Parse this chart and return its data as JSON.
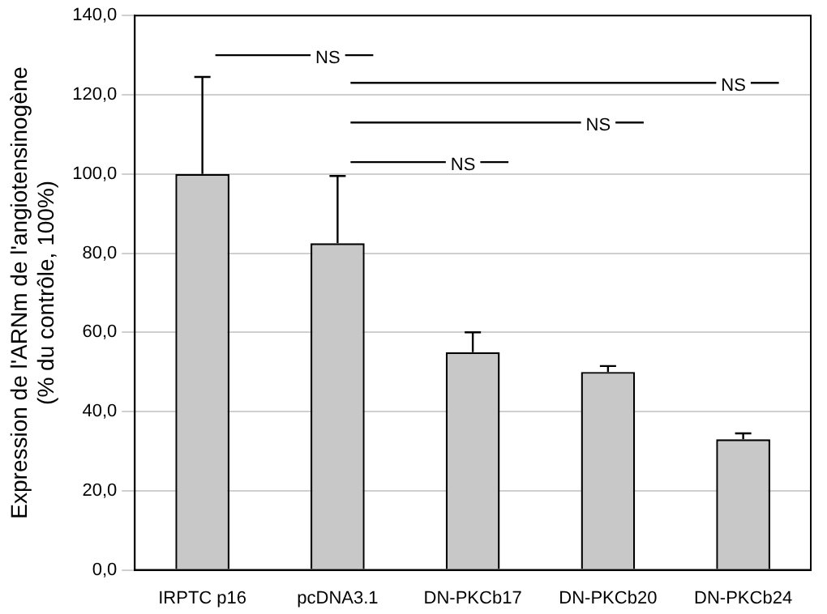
{
  "chart_data": {
    "type": "bar",
    "ylabel": "Expression de l'ARNm de l'angiotensinogène\n(% du contrôle, 100%)",
    "categories": [
      "IRPTC p16",
      "pcDNA3.1",
      "DN-PKCb17",
      "DN-PKCb20",
      "DN-PKCb24"
    ],
    "values": [
      100,
      82.5,
      55,
      50,
      33
    ],
    "color": "#c8c8c8",
    "errors": [
      [
        100,
        124.5
      ],
      [
        82.5,
        99.5
      ],
      [
        55,
        60
      ],
      [
        50,
        51.5
      ],
      [
        33,
        34.5
      ]
    ],
    "ylim": [
      0,
      140
    ],
    "yticks": [
      {
        "value": 0,
        "label": "0,0"
      },
      {
        "value": 20,
        "label": "20,0"
      },
      {
        "value": 40,
        "label": "40,0"
      },
      {
        "value": 60,
        "label": "60,0"
      },
      {
        "value": 80,
        "label": "80,0"
      },
      {
        "value": 100,
        "label": "100,0"
      },
      {
        "value": 120,
        "label": "120,0"
      },
      {
        "value": 140,
        "label": "140,0"
      }
    ],
    "grid": "y",
    "legend": false,
    "annotations": [
      "NS",
      "NS",
      "NS",
      "NS"
    ]
  }
}
